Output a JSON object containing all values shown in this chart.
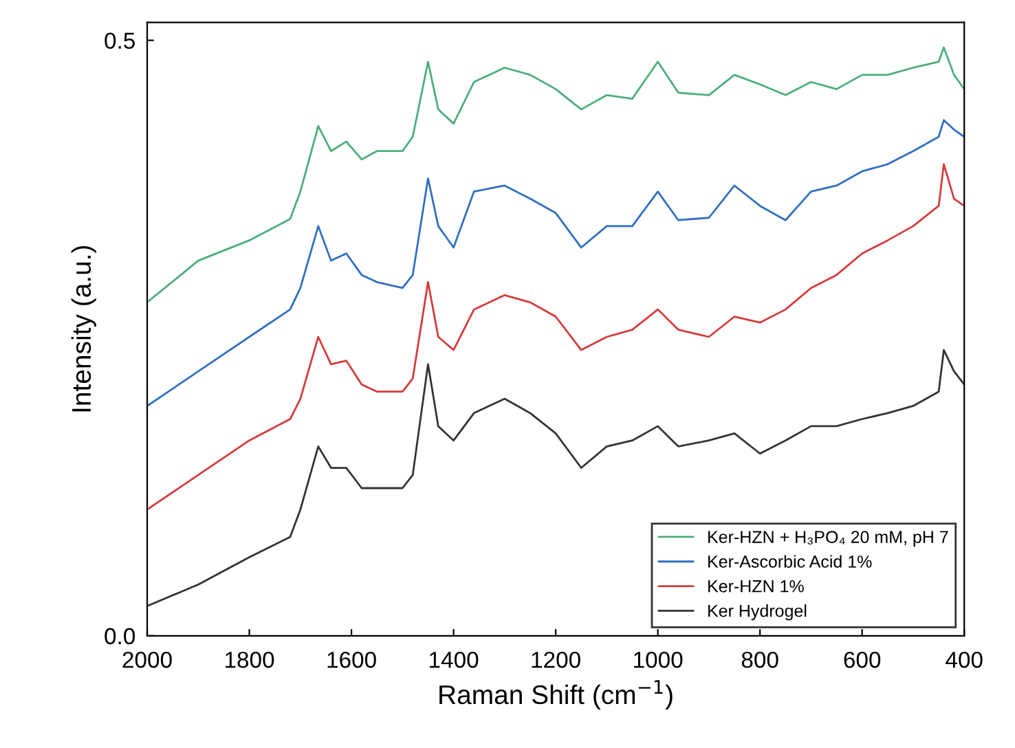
{
  "chart_data": {
    "type": "line",
    "xlabel": "Raman Shift (cm$^{−1}$)",
    "ylabel": "Intensity (a.u.)",
    "xlim": [
      2000,
      400
    ],
    "xticks": [
      2000,
      1800,
      1600,
      1400,
      1200,
      1000,
      800,
      600,
      400
    ],
    "ylim": [
      0,
      0.515
    ],
    "yticks": [
      {
        "value": 0,
        "label": "0.0"
      },
      0.5
    ],
    "x": [
      2000,
      1900,
      1800,
      1720,
      1700,
      1665,
      1640,
      1610,
      1580,
      1550,
      1500,
      1480,
      1450,
      1430,
      1400,
      1360,
      1300,
      1250,
      1200,
      1150,
      1100,
      1050,
      1000,
      960,
      900,
      850,
      800,
      750,
      700,
      650,
      600,
      550,
      500,
      450,
      440,
      420,
      400
    ],
    "series": [
      {
        "name": "Ker-HZN + H₃PO₄ 20 mM, pH 7",
        "color": "#4aae78",
        "values": [
          0.28,
          0.315,
          0.332,
          0.35,
          0.373,
          0.428,
          0.407,
          0.415,
          0.4,
          0.407,
          0.407,
          0.419,
          0.482,
          0.442,
          0.43,
          0.465,
          0.477,
          0.471,
          0.459,
          0.442,
          0.454,
          0.451,
          0.482,
          0.456,
          0.454,
          0.471,
          0.463,
          0.454,
          0.465,
          0.459,
          0.471,
          0.471,
          0.477,
          0.482,
          0.494,
          0.471,
          0.459
        ]
      },
      {
        "name": "Ker-Ascorbic Acid 1%",
        "color": "#2f6fc0",
        "values": [
          0.193,
          0.222,
          0.251,
          0.274,
          0.292,
          0.344,
          0.315,
          0.321,
          0.303,
          0.297,
          0.292,
          0.303,
          0.384,
          0.344,
          0.326,
          0.373,
          0.378,
          0.367,
          0.355,
          0.326,
          0.344,
          0.344,
          0.373,
          0.349,
          0.351,
          0.378,
          0.361,
          0.349,
          0.373,
          0.378,
          0.39,
          0.396,
          0.407,
          0.419,
          0.433,
          0.425,
          0.419
        ]
      },
      {
        "name": "Ker-HZN 1%",
        "color": "#d63a3a",
        "values": [
          0.106,
          0.135,
          0.164,
          0.182,
          0.199,
          0.251,
          0.228,
          0.231,
          0.211,
          0.205,
          0.205,
          0.216,
          0.297,
          0.251,
          0.24,
          0.274,
          0.286,
          0.28,
          0.268,
          0.24,
          0.251,
          0.257,
          0.274,
          0.257,
          0.251,
          0.268,
          0.263,
          0.274,
          0.292,
          0.303,
          0.321,
          0.332,
          0.344,
          0.361,
          0.396,
          0.367,
          0.361
        ]
      },
      {
        "name": "Ker Hydrogel",
        "color": "#333333",
        "values": [
          0.025,
          0.043,
          0.066,
          0.083,
          0.106,
          0.159,
          0.141,
          0.141,
          0.124,
          0.124,
          0.124,
          0.135,
          0.228,
          0.176,
          0.164,
          0.187,
          0.199,
          0.187,
          0.17,
          0.141,
          0.159,
          0.164,
          0.176,
          0.159,
          0.164,
          0.17,
          0.153,
          0.164,
          0.176,
          0.176,
          0.182,
          0.187,
          0.193,
          0.205,
          0.24,
          0.222,
          0.211
        ]
      }
    ],
    "legend": "bottom right",
    "grid": false
  }
}
